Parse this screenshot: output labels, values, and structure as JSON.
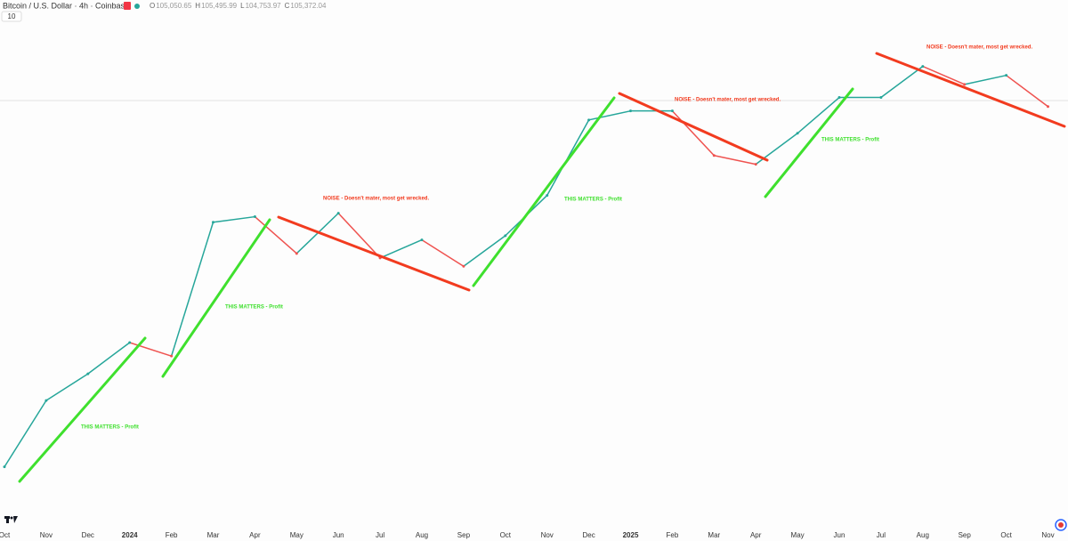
{
  "header": {
    "symbol": "Bitcoin / U.S. Dollar · 4h · Coinbase",
    "interval_badge": "10",
    "ohlc": [
      {
        "label": "O",
        "value": "105,050.65"
      },
      {
        "label": "H",
        "value": "105,495.99"
      },
      {
        "label": "L",
        "value": "104,753.97"
      },
      {
        "label": "C",
        "value": "105,372.04"
      }
    ]
  },
  "chart_data": {
    "type": "line",
    "log_scale": true,
    "categories": [
      "Oct",
      "Nov",
      "Dec",
      "2024",
      "Feb",
      "Mar",
      "Apr",
      "May",
      "Jun",
      "Jul",
      "Aug",
      "Sep",
      "Oct",
      "Nov",
      "Dec",
      "2025",
      "Feb",
      "Mar",
      "Apr",
      "May",
      "Jun",
      "Jul",
      "Aug",
      "Sep",
      "Oct",
      "Nov"
    ],
    "values": [
      26300,
      33800,
      37400,
      42100,
      40000,
      66400,
      67800,
      59000,
      68700,
      58000,
      62100,
      56200,
      63100,
      73500,
      97800,
      101200,
      101200,
      85500,
      82700,
      93000,
      106500,
      106500,
      119800,
      111900,
      115800,
      102900
    ],
    "up_color": "#26a69a",
    "down_color": "#ef5350",
    "ylim": [
      21100,
      144000
    ],
    "annotations": [
      "THIS MATTERS - Profit",
      "THIS MATTERS - Profit",
      "NOISE - Doesn't mater, most get wrecked.",
      "THIS MATTERS - Profit",
      "NOISE - Doesn't mater, most get wrecked.",
      "THIS MATTERS - Profit",
      "NOISE - Doesn't mater, most get wrecked."
    ]
  }
}
